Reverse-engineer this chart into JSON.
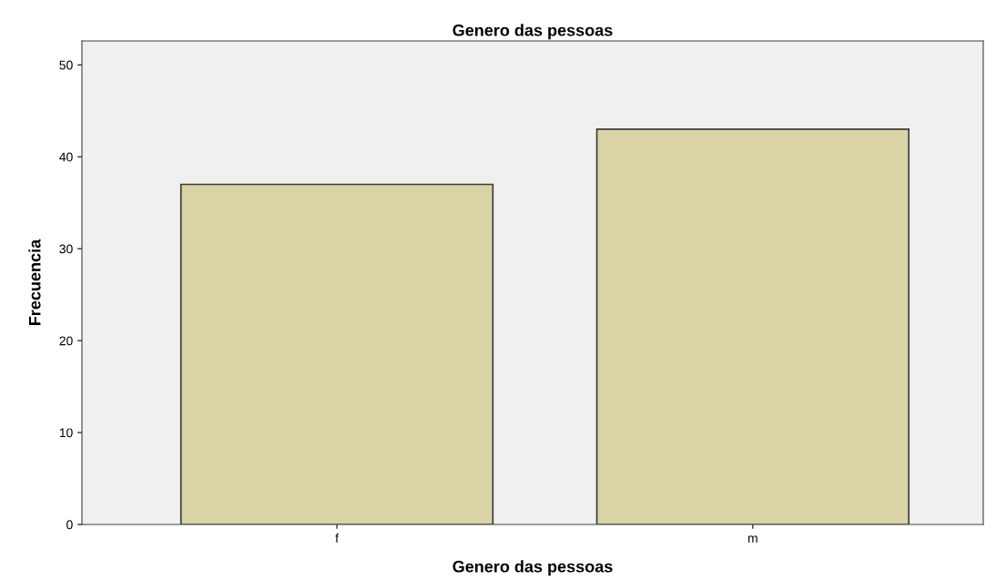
{
  "chart_data": {
    "type": "bar",
    "title": "Genero das pessoas",
    "xlabel": "Genero das pessoas",
    "ylabel": "Frecuencia",
    "categories": [
      "f",
      "m"
    ],
    "values": [
      37,
      43
    ],
    "color": "#d9d3a5",
    "ylim": [
      0,
      52.6
    ],
    "yticks": [
      0,
      10,
      20,
      30,
      40,
      50
    ],
    "grid": false,
    "legend": false
  }
}
